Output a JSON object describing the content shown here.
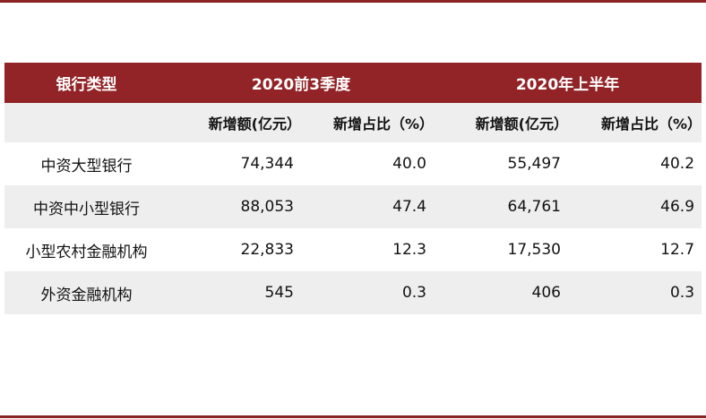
{
  "table": {
    "header": {
      "label_col": "银行类型",
      "group1": "2020前3季度",
      "group2": "2020年上半年"
    },
    "subheader": [
      "新增额(亿元）",
      "新增占比（%）",
      "新增额(亿元）",
      "新增占比（%）"
    ],
    "rows": [
      {
        "label": "中资大型银行",
        "values": [
          "74,344",
          "40.0",
          "55,497",
          "40.2"
        ]
      },
      {
        "label": "中资中小型银行",
        "values": [
          "88,053",
          "47.4",
          "64,761",
          "46.9"
        ]
      },
      {
        "label": "小型农村金融机构",
        "values": [
          "22,833",
          "12.3",
          "17,530",
          "12.7"
        ]
      },
      {
        "label": "外资金融机构",
        "values": [
          "545",
          "0.3",
          "406",
          "0.3"
        ]
      }
    ]
  },
  "colors": {
    "header_bg": "#922428",
    "rule": "#8c2325",
    "stripe": "#eeeeee"
  }
}
